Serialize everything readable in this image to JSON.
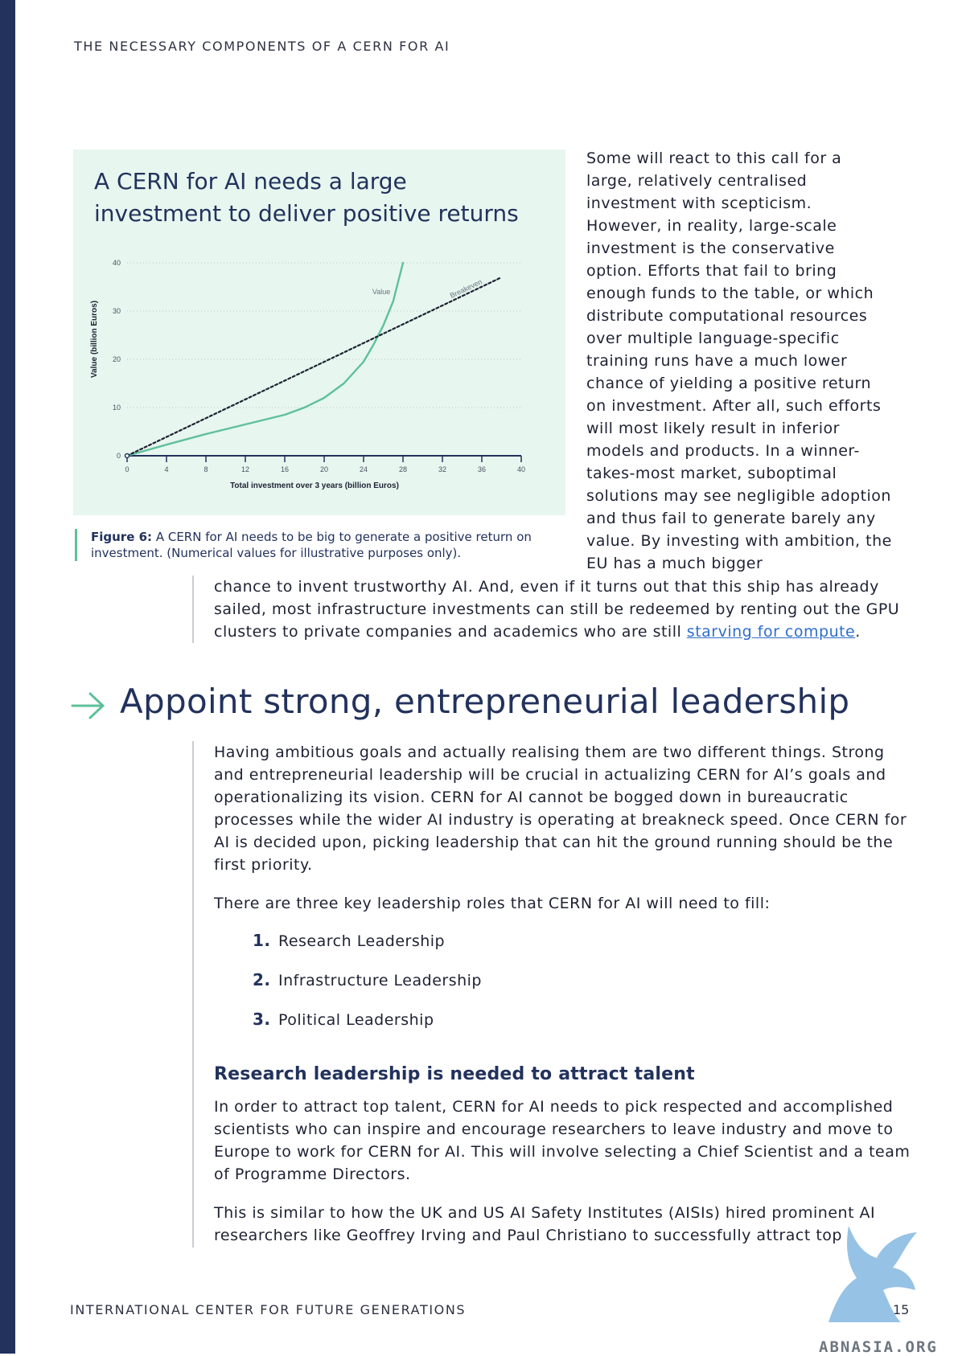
{
  "header": {
    "running_head": "THE NECESSARY COMPONENTS OF A CERN FOR AI"
  },
  "figure": {
    "title_line1": "A CERN for AI needs a large",
    "title_line2": "investment to deliver positive returns",
    "caption_label": "Figure 6:",
    "caption_text": " A CERN for AI needs to be big to generate a positive return on investment. (Numerical values for illustrative purposes only)."
  },
  "chart_data": {
    "type": "line",
    "title": "A CERN for AI needs a large investment to deliver positive returns",
    "xlabel": "Total investment over 3 years (billion Euros)",
    "ylabel": "Value (billion Euros)",
    "xlim": [
      0,
      40
    ],
    "ylim": [
      0,
      40
    ],
    "x_ticks": [
      0,
      4,
      8,
      12,
      16,
      20,
      24,
      28,
      32,
      36,
      40
    ],
    "y_ticks": [
      0,
      10,
      20,
      30,
      40
    ],
    "grid": "horizontal dotted",
    "series": [
      {
        "name": "Value",
        "style": "solid",
        "color": "#5fc09a",
        "x": [
          0,
          4,
          8,
          12,
          16,
          18,
          20,
          22,
          24,
          25,
          26,
          27,
          27.5,
          28
        ],
        "y": [
          0,
          2.3,
          4.5,
          6.5,
          8.5,
          10,
          12,
          15,
          19.5,
          23,
          27,
          32,
          36,
          40
        ]
      },
      {
        "name": "Breakeven",
        "style": "dotted",
        "color": "#1e2233",
        "x": [
          0,
          38
        ],
        "y": [
          0,
          37
        ]
      }
    ]
  },
  "right_column": {
    "text": "Some will react to this call for a large, relatively centralised investment with scepticism. However, in reality, large-scale investment is the conservative option. Efforts that fail to bring enough funds to the table, or which distribute computational resources over multiple language-specific training runs have a much lower chance of yielding a positive return on investment. After all, such efforts will most likely result in inferior models and products. In a winner-takes-most market, suboptimal solutions may see negligible adoption and thus fail to generate barely any value. By investing with ambition, the EU has a much bigger"
  },
  "continuation": {
    "text": "chance to invent trustworthy AI. And, even if it turns out that this ship has already sailed, most infrastructure investments can still be redeemed by renting out the GPU clusters to private companies and academics who are still ",
    "link": "starving for compute",
    "end": "."
  },
  "section": {
    "heading": "Appoint strong, entrepreneurial leadership",
    "p1": "Having ambitious goals and actually realising them are two different things. Strong and entrepreneurial leadership will be crucial in actualizing CERN for AI’s goals and operationalizing its vision. CERN for AI cannot be bogged down in bureaucratic processes while the wider AI industry is operating at breakneck speed. Once CERN for AI is decided upon, picking leadership that can hit the ground running should be the first priority.",
    "p2": "There are three key leadership roles that CERN for AI will need to fill:",
    "roles": [
      {
        "num": "1.",
        "label": "Research Leadership"
      },
      {
        "num": "2.",
        "label": "Infrastructure Leadership"
      },
      {
        "num": "3.",
        "label": "Political Leadership"
      }
    ],
    "subheading": "Research leadership is needed to attract talent",
    "p3": "In order to attract top talent, CERN for AI needs to pick respected and accomplished scientists who can inspire and encourage researchers to leave industry and move to Europe to work for CERN for AI. This will involve selecting a Chief Scientist and a team of Programme Directors.",
    "p4": "This is similar to how the UK and US AI Safety Institutes (AISIs) hired prominent AI researchers like Geoffrey Irving and Paul Christiano to successfully attract top"
  },
  "footer": {
    "org": "INTERNATIONAL CENTER FOR FUTURE GENERATIONS",
    "page": "15"
  },
  "watermark": {
    "text": "ABNASIA.ORG",
    "icon": "phoenix-logo-icon"
  },
  "colors": {
    "navy": "#22325c",
    "accent": "#5fc09a",
    "panel": "#e7f6ef",
    "link": "#2f6ec8"
  }
}
